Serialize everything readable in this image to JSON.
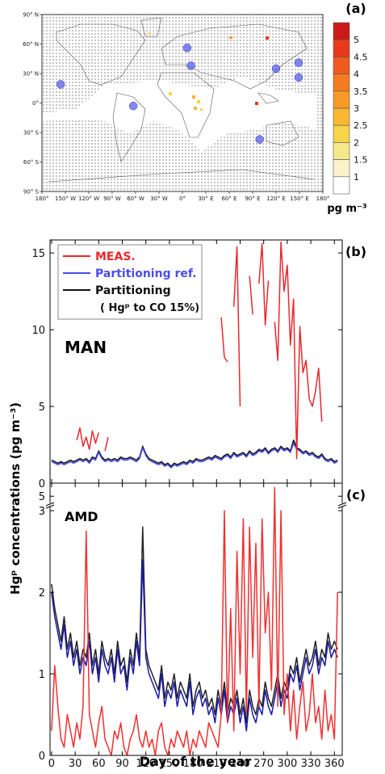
{
  "chart_data": [
    {
      "type": "map",
      "panel_label": "(a)",
      "xlim": [
        -180,
        180
      ],
      "ylim": [
        -90,
        90
      ],
      "xticks": [
        {
          "value": -180,
          "label": "180°"
        },
        {
          "value": -150,
          "label": "150° W"
        },
        {
          "value": -120,
          "label": "120° W"
        },
        {
          "value": -90,
          "label": "90° W"
        },
        {
          "value": -60,
          "label": "60° W"
        },
        {
          "value": -30,
          "label": "30° W"
        },
        {
          "value": 0,
          "label": "0°"
        },
        {
          "value": 30,
          "label": "30° E"
        },
        {
          "value": 60,
          "label": "60° E"
        },
        {
          "value": 90,
          "label": "90° E"
        },
        {
          "value": 120,
          "label": "120° E"
        },
        {
          "value": 150,
          "label": "150° E"
        },
        {
          "value": 180,
          "label": "180°"
        }
      ],
      "yticks": [
        {
          "value": 90,
          "label": "90° N"
        },
        {
          "value": 60,
          "label": "60° N"
        },
        {
          "value": 30,
          "label": "30° N"
        },
        {
          "value": 0,
          "label": "0°"
        },
        {
          "value": -30,
          "label": "30° S"
        },
        {
          "value": -60,
          "label": "60° S"
        },
        {
          "value": -90,
          "label": "90° S"
        }
      ],
      "points": {
        "lon": [
          -156,
          -63,
          6,
          11,
          99,
          120,
          149,
          149
        ],
        "lat": [
          19,
          -3,
          56,
          38,
          -37,
          35,
          41,
          26
        ]
      },
      "point_color": "#5560f0",
      "colorbar": {
        "levels": [
          5,
          4.5,
          4,
          3.5,
          3,
          2.5,
          2,
          1.5,
          1
        ],
        "colors": [
          "#cc1a1a",
          "#e8391c",
          "#f05a1e",
          "#f47c20",
          "#f79a26",
          "#f9b732",
          "#f7d44a",
          "#f4e88a",
          "#fbf2cc",
          "#ffffff"
        ],
        "label": "pg m⁻³"
      }
    },
    {
      "type": "line",
      "panel_label": "(b)",
      "annotation": "MAN",
      "ylabel": "Hgᵖ concentrations (pg m⁻³)",
      "xlim": [
        -2,
        370
      ],
      "xticks": [
        0,
        30,
        60,
        90,
        120,
        150,
        180,
        210,
        240,
        270,
        300,
        330,
        360
      ],
      "xtick_labels": false,
      "ylim": [
        0,
        15.85
      ],
      "yticks": [
        0,
        5,
        10,
        15
      ],
      "legend": "upper left",
      "x": [
        0,
        4,
        8,
        12,
        16,
        20,
        24,
        28,
        32,
        36,
        40,
        44,
        48,
        52,
        56,
        60,
        64,
        68,
        72,
        76,
        80,
        84,
        88,
        92,
        96,
        100,
        104,
        108,
        112,
        116,
        120,
        124,
        128,
        132,
        136,
        140,
        144,
        148,
        152,
        156,
        160,
        164,
        168,
        172,
        176,
        180,
        184,
        188,
        192,
        196,
        200,
        204,
        208,
        212,
        216,
        220,
        224,
        228,
        232,
        236,
        240,
        244,
        248,
        252,
        256,
        260,
        264,
        268,
        272,
        276,
        280,
        284,
        288,
        292,
        296,
        300,
        304,
        308,
        312,
        316,
        320,
        324,
        328,
        332,
        336,
        340,
        344,
        348,
        352,
        356,
        360,
        364
      ],
      "series": [
        {
          "name": "MEAS.",
          "color": "#e8282e",
          "values": [
            null,
            null,
            null,
            null,
            null,
            null,
            null,
            null,
            2.8,
            3.6,
            2.4,
            3.0,
            2.2,
            3.4,
            2.6,
            3.3,
            null,
            2.1,
            3.0,
            null,
            null,
            null,
            null,
            null,
            null,
            null,
            null,
            null,
            null,
            null,
            null,
            null,
            null,
            null,
            null,
            null,
            null,
            null,
            null,
            null,
            null,
            null,
            null,
            null,
            null,
            null,
            null,
            null,
            null,
            null,
            null,
            null,
            null,
            null,
            10.8,
            8.2,
            7.9,
            null,
            11.5,
            15.4,
            5.0,
            null,
            null,
            13.5,
            11.0,
            null,
            13.0,
            15.6,
            10.3,
            13.2,
            null,
            10.5,
            8.0,
            15.7,
            12.5,
            14.2,
            9.0,
            12.0,
            1.6,
            10.2,
            7.2,
            8.0,
            5.5,
            5.0,
            6.0,
            7.5,
            4.0,
            null,
            null,
            null,
            null,
            null
          ]
        },
        {
          "name": "Partitioning ref.",
          "color": "#4b4cf0",
          "values": [
            1.4,
            1.3,
            1.2,
            1.3,
            1.2,
            1.3,
            1.4,
            1.3,
            1.4,
            1.5,
            1.4,
            1.5,
            1.3,
            1.6,
            1.5,
            2.0,
            1.6,
            1.4,
            1.5,
            1.4,
            1.5,
            1.4,
            1.6,
            1.5,
            1.5,
            1.6,
            1.5,
            1.4,
            1.6,
            2.3,
            1.8,
            1.5,
            1.4,
            1.3,
            1.2,
            1.3,
            1.1,
            1.2,
            1.0,
            1.2,
            1.1,
            1.2,
            1.3,
            1.2,
            1.4,
            1.3,
            1.5,
            1.4,
            1.4,
            1.5,
            1.6,
            1.5,
            1.7,
            1.6,
            1.5,
            1.7,
            1.8,
            1.6,
            1.9,
            1.7,
            1.8,
            1.9,
            1.7,
            2.0,
            1.8,
            1.9,
            2.1,
            2.0,
            2.2,
            1.9,
            2.1,
            2.2,
            2.0,
            2.3,
            2.1,
            2.2,
            2.0,
            2.6,
            2.2,
            2.1,
            1.9,
            2.0,
            1.8,
            1.9,
            1.7,
            1.6,
            1.8,
            1.5,
            1.4,
            1.5,
            1.3,
            1.4
          ]
        },
        {
          "name": "Partitioning",
          "name_detail": "( Hgᵖ to CO 15%)",
          "color": "#111111",
          "values": [
            1.5,
            1.4,
            1.3,
            1.4,
            1.3,
            1.4,
            1.5,
            1.4,
            1.5,
            1.6,
            1.5,
            1.6,
            1.4,
            1.7,
            1.6,
            2.1,
            1.7,
            1.5,
            1.6,
            1.5,
            1.6,
            1.5,
            1.7,
            1.6,
            1.6,
            1.7,
            1.6,
            1.5,
            1.7,
            2.4,
            1.9,
            1.6,
            1.5,
            1.4,
            1.3,
            1.4,
            1.2,
            1.3,
            1.1,
            1.3,
            1.2,
            1.3,
            1.4,
            1.3,
            1.5,
            1.4,
            1.6,
            1.5,
            1.5,
            1.6,
            1.7,
            1.6,
            1.8,
            1.7,
            1.6,
            1.8,
            1.9,
            1.7,
            2.0,
            1.8,
            1.9,
            2.0,
            1.8,
            2.1,
            1.9,
            2.0,
            2.2,
            2.1,
            2.3,
            2.0,
            2.2,
            2.3,
            2.1,
            2.4,
            2.2,
            2.3,
            2.1,
            2.8,
            2.3,
            2.2,
            2.0,
            2.1,
            1.9,
            2.0,
            1.8,
            1.7,
            1.9,
            1.6,
            1.5,
            1.6,
            1.4,
            1.5
          ]
        }
      ]
    },
    {
      "type": "line",
      "panel_label": "(c)",
      "annotation": "AMD",
      "xlabel": "Day of the year",
      "xlim": [
        -2,
        370
      ],
      "xticks": [
        0,
        30,
        60,
        90,
        120,
        150,
        180,
        210,
        240,
        270,
        300,
        330,
        360
      ],
      "ylim": [
        0,
        3.07
      ],
      "yticks": [
        0,
        1,
        2,
        3
      ],
      "upper_ylim": [
        4.8,
        5.3
      ],
      "upper_yticks": [
        5
      ],
      "x": [
        0,
        4,
        8,
        12,
        16,
        20,
        24,
        28,
        32,
        36,
        40,
        44,
        48,
        52,
        56,
        60,
        64,
        68,
        72,
        76,
        80,
        84,
        88,
        92,
        96,
        100,
        104,
        108,
        112,
        116,
        120,
        124,
        128,
        132,
        136,
        140,
        144,
        148,
        152,
        156,
        160,
        164,
        168,
        172,
        176,
        180,
        184,
        188,
        192,
        196,
        200,
        204,
        208,
        212,
        216,
        220,
        224,
        228,
        232,
        236,
        240,
        244,
        248,
        252,
        256,
        260,
        264,
        268,
        272,
        276,
        280,
        284,
        288,
        292,
        296,
        300,
        304,
        308,
        312,
        316,
        320,
        324,
        328,
        332,
        336,
        340,
        344,
        348,
        352,
        356,
        360,
        364
      ],
      "series": [
        {
          "name": "MEAS.",
          "color": "#f03030",
          "values": [
            0.3,
            1.1,
            0.6,
            0.2,
            0.1,
            0.5,
            0.3,
            0.1,
            0.4,
            0.2,
            0.6,
            2.75,
            0.5,
            0.3,
            0.1,
            0.4,
            0.6,
            0.2,
            0.1,
            0.0,
            0.3,
            0.2,
            0.4,
            0.1,
            0.0,
            0.2,
            0.3,
            0.5,
            0.2,
            0.1,
            0.3,
            0.1,
            0.2,
            0.0,
            0.3,
            0.4,
            0.1,
            0.0,
            0.2,
            0.1,
            0.3,
            0.2,
            0.1,
            0.3,
            0.0,
            0.2,
            0.1,
            0.3,
            0.2,
            0.1,
            0.4,
            0.3,
            0.2,
            0.1,
            0.5,
            3.0,
            0.4,
            1.8,
            0.3,
            2.5,
            1.0,
            2.9,
            0.5,
            2.8,
            1.2,
            2.6,
            0.6,
            2.9,
            1.5,
            2.0,
            0.8,
            5.2,
            0.6,
            3.0,
            0.5,
            1.0,
            0.3,
            0.8,
            0.2,
            0.6,
            0.9,
            0.3,
            0.5,
            1.0,
            0.4,
            0.6,
            0.2,
            0.8,
            0.3,
            0.5,
            0.2,
            2.0
          ]
        },
        {
          "name": "Partitioning ref.",
          "color": "#1a1aa8",
          "values": [
            2.0,
            1.7,
            1.5,
            1.3,
            1.6,
            1.2,
            1.4,
            1.1,
            1.3,
            1.0,
            1.2,
            1.1,
            1.4,
            1.0,
            1.2,
            0.9,
            1.3,
            1.1,
            1.0,
            1.2,
            0.9,
            1.3,
            1.0,
            1.1,
            0.8,
            1.2,
            1.0,
            1.4,
            1.1,
            2.4,
            1.2,
            1.0,
            0.9,
            0.8,
            0.7,
            1.0,
            0.6,
            0.8,
            0.7,
            0.9,
            0.6,
            0.8,
            0.7,
            0.6,
            0.9,
            0.5,
            0.7,
            0.8,
            0.6,
            0.7,
            0.5,
            0.6,
            0.4,
            0.7,
            0.5,
            0.8,
            0.4,
            0.6,
            0.5,
            0.7,
            0.4,
            0.6,
            0.3,
            0.7,
            0.5,
            0.4,
            0.6,
            0.5,
            0.8,
            0.6,
            0.5,
            0.7,
            0.9,
            0.6,
            0.8,
            0.7,
            1.0,
            0.9,
            1.1,
            0.8,
            1.0,
            1.2,
            1.0,
            1.1,
            1.3,
            1.0,
            1.2,
            1.1,
            1.4,
            1.2,
            1.3,
            1.2
          ]
        },
        {
          "name": "Partitioning",
          "color": "#222222",
          "values": [
            2.1,
            1.8,
            1.6,
            1.4,
            1.7,
            1.3,
            1.5,
            1.2,
            1.4,
            1.1,
            1.3,
            1.2,
            1.5,
            1.1,
            1.3,
            1.0,
            1.4,
            1.2,
            1.1,
            1.3,
            1.0,
            1.4,
            1.1,
            1.2,
            0.9,
            1.3,
            1.1,
            1.5,
            1.2,
            2.8,
            1.3,
            1.1,
            1.0,
            0.9,
            0.8,
            1.1,
            0.7,
            0.9,
            0.8,
            1.0,
            0.7,
            0.9,
            0.8,
            0.7,
            1.0,
            0.6,
            0.8,
            0.9,
            0.7,
            0.8,
            0.6,
            0.7,
            0.5,
            0.8,
            0.6,
            0.9,
            0.5,
            0.7,
            0.6,
            0.8,
            0.5,
            0.7,
            0.4,
            0.8,
            0.6,
            0.5,
            0.7,
            0.6,
            0.9,
            0.7,
            0.6,
            0.8,
            1.0,
            0.7,
            0.9,
            0.8,
            1.1,
            1.0,
            1.2,
            0.9,
            1.1,
            1.3,
            1.1,
            1.2,
            1.4,
            1.1,
            1.3,
            1.2,
            1.5,
            1.3,
            1.4,
            1.3
          ]
        }
      ]
    }
  ]
}
